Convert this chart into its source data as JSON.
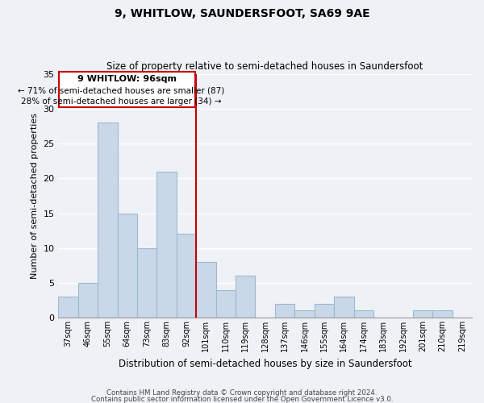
{
  "title": "9, WHITLOW, SAUNDERSFOOT, SA69 9AE",
  "subtitle": "Size of property relative to semi-detached houses in Saundersfoot",
  "xlabel": "Distribution of semi-detached houses by size in Saundersfoot",
  "ylabel": "Number of semi-detached properties",
  "bar_color": "#c8d8e8",
  "bar_edge_color": "#a0b8cc",
  "categories": [
    "37sqm",
    "46sqm",
    "55sqm",
    "64sqm",
    "73sqm",
    "83sqm",
    "92sqm",
    "101sqm",
    "110sqm",
    "119sqm",
    "128sqm",
    "137sqm",
    "146sqm",
    "155sqm",
    "164sqm",
    "174sqm",
    "183sqm",
    "192sqm",
    "201sqm",
    "210sqm",
    "219sqm"
  ],
  "values": [
    3,
    5,
    28,
    15,
    10,
    21,
    12,
    8,
    4,
    6,
    0,
    2,
    1,
    2,
    3,
    1,
    0,
    0,
    1,
    1,
    0
  ],
  "ylim": [
    0,
    35
  ],
  "yticks": [
    0,
    5,
    10,
    15,
    20,
    25,
    30,
    35
  ],
  "subject_line_color": "#cc0000",
  "annotation_title": "9 WHITLOW: 96sqm",
  "annotation_line1": "← 71% of semi-detached houses are smaller (87)",
  "annotation_line2": "28% of semi-detached houses are larger (34) →",
  "annotation_box_color": "#ffffff",
  "annotation_box_edge": "#cc0000",
  "footer1": "Contains HM Land Registry data © Crown copyright and database right 2024.",
  "footer2": "Contains public sector information licensed under the Open Government Licence v3.0.",
  "background_color": "#eef2f7",
  "grid_color": "#ffffff"
}
